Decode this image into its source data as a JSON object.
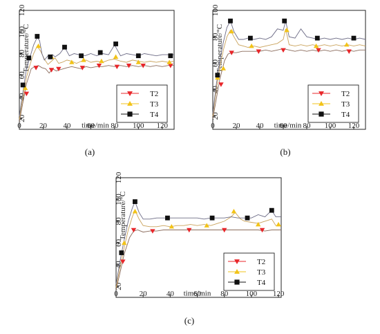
{
  "colors": {
    "T2": "#e8262a",
    "T3": "#f2c318",
    "T4": "#111111",
    "line_T2": "#8a6a5a",
    "line_T3": "#c9a25a",
    "line_T4": "#6b6a85"
  },
  "chart_data": [
    {
      "type": "line",
      "panel_label": "(a)",
      "xlabel": "time/min",
      "ylabel": "Temperature/°C",
      "xlim": [
        0,
        130
      ],
      "ylim": [
        10,
        120
      ],
      "xticks": [
        0,
        20,
        40,
        60,
        80,
        100,
        120
      ],
      "yticks": [
        20,
        40,
        60,
        80,
        100,
        120
      ],
      "legend": "bottom-right",
      "series": [
        {
          "name": "T2",
          "marker": "triangle-down",
          "x": [
            0,
            3,
            6,
            10,
            13,
            16,
            19,
            22,
            25,
            28,
            31,
            34,
            37,
            40,
            44,
            48,
            52,
            56,
            60,
            65,
            70,
            75,
            80,
            85,
            90,
            95,
            100,
            105,
            110,
            115,
            120,
            125,
            130
          ],
          "y": [
            17,
            35,
            52,
            66,
            68,
            69,
            67,
            66,
            62,
            66,
            64,
            65,
            66,
            67,
            68,
            67,
            66,
            68,
            67,
            68,
            68,
            69,
            68,
            69,
            68,
            69,
            68,
            69,
            68,
            69,
            68,
            69,
            69
          ],
          "markers_x": [
            6,
            14,
            27,
            33,
            53,
            67,
            82,
            92,
            104,
            127
          ],
          "markers_y": [
            43,
            67,
            65,
            66,
            67,
            69,
            68,
            69,
            69,
            69
          ]
        },
        {
          "name": "T3",
          "marker": "triangle-up",
          "x": [
            0,
            3,
            6,
            9,
            12,
            15,
            18,
            21,
            24,
            27,
            30,
            33,
            36,
            40,
            44,
            48,
            52,
            56,
            60,
            65,
            70,
            75,
            80,
            85,
            90,
            95,
            100,
            105,
            110,
            115,
            120,
            125,
            130
          ],
          "y": [
            19,
            40,
            58,
            70,
            80,
            87,
            82,
            75,
            70,
            73,
            76,
            71,
            72,
            74,
            73,
            71,
            73,
            74,
            72,
            73,
            72,
            74,
            75,
            73,
            72,
            74,
            73,
            72,
            73,
            72,
            73,
            72,
            73
          ],
          "markers_x": [
            5,
            16,
            27,
            44,
            54,
            69,
            81,
            100,
            126
          ],
          "markers_y": [
            48,
            87,
            77,
            72,
            74,
            73,
            77,
            72,
            72
          ]
        },
        {
          "name": "T4",
          "marker": "square",
          "x": [
            0,
            3,
            6,
            9,
            12,
            15,
            17,
            19,
            21,
            24,
            26,
            28,
            30,
            34,
            38,
            42,
            46,
            50,
            55,
            60,
            65,
            70,
            75,
            80,
            85,
            90,
            95,
            100,
            105,
            110,
            115,
            120,
            125,
            130
          ],
          "y": [
            22,
            45,
            66,
            77,
            88,
            95,
            92,
            80,
            74,
            78,
            75,
            79,
            77,
            80,
            86,
            78,
            80,
            79,
            78,
            80,
            78,
            80,
            79,
            88,
            78,
            80,
            79,
            78,
            80,
            79,
            78,
            79,
            79,
            79
          ],
          "markers_x": [
            3,
            8,
            15,
            26,
            38,
            52,
            68,
            81,
            100,
            127
          ],
          "markers_y": [
            51,
            76,
            96,
            77,
            86,
            78,
            81,
            89,
            78,
            78
          ]
        }
      ],
      "legend_entries": [
        "T2",
        "T3",
        "T4"
      ]
    },
    {
      "type": "line",
      "panel_label": "(b)",
      "xlabel": "time/min",
      "ylabel": "Temperature/°C",
      "xlim": [
        0,
        130
      ],
      "ylim": [
        10,
        100
      ],
      "xticks": [
        0,
        20,
        40,
        60,
        80,
        100,
        120
      ],
      "yticks": [
        20,
        40,
        60,
        80,
        100
      ],
      "legend": "bottom-right",
      "series": [
        {
          "name": "T2",
          "marker": "triangle-down",
          "x": [
            0,
            3,
            6,
            10,
            13,
            16,
            20,
            25,
            30,
            35,
            40,
            45,
            50,
            55,
            60,
            65,
            70,
            75,
            80,
            85,
            90,
            95,
            100,
            105,
            110,
            115,
            120,
            125,
            130
          ],
          "y": [
            18,
            33,
            48,
            62,
            67,
            68,
            68,
            69,
            69,
            69,
            69,
            70,
            69,
            70,
            71,
            70,
            69,
            70,
            69,
            70,
            69,
            70,
            69,
            70,
            69,
            70,
            69,
            70,
            70
          ],
          "markers_x": [
            7,
            16,
            39,
            60,
            90,
            116
          ],
          "markers_y": [
            44,
            68,
            69,
            70,
            70,
            69
          ]
        },
        {
          "name": "T3",
          "marker": "triangle-up",
          "x": [
            0,
            3,
            6,
            9,
            12,
            15,
            18,
            22,
            26,
            30,
            35,
            40,
            45,
            50,
            55,
            60,
            62,
            65,
            70,
            75,
            80,
            85,
            90,
            95,
            100,
            105,
            110,
            115,
            120,
            125,
            130
          ],
          "y": [
            20,
            40,
            57,
            70,
            80,
            85,
            80,
            74,
            73,
            72,
            73,
            72,
            73,
            74,
            75,
            78,
            86,
            74,
            73,
            74,
            73,
            74,
            73,
            74,
            73,
            74,
            73,
            74,
            73,
            74,
            73
          ],
          "markers_x": [
            4,
            9,
            16,
            33,
            63,
            88,
            114
          ],
          "markers_y": [
            49,
            56,
            84,
            73,
            85,
            73,
            74
          ]
        },
        {
          "name": "T4",
          "marker": "square",
          "x": [
            0,
            3,
            6,
            9,
            12,
            15,
            18,
            22,
            26,
            30,
            35,
            40,
            45,
            50,
            55,
            60,
            62,
            65,
            70,
            75,
            80,
            85,
            90,
            95,
            100,
            105,
            110,
            115,
            120,
            125,
            130
          ],
          "y": [
            22,
            44,
            62,
            76,
            87,
            92,
            84,
            78,
            78,
            79,
            78,
            79,
            78,
            80,
            86,
            85,
            92,
            80,
            79,
            86,
            80,
            79,
            78,
            79,
            78,
            79,
            78,
            79,
            78,
            79,
            78
          ],
          "markers_x": [
            4,
            15,
            32,
            61,
            89,
            120
          ],
          "markers_y": [
            51,
            92,
            79,
            92,
            79,
            79
          ]
        }
      ],
      "legend_entries": [
        "T2",
        "T3",
        "T4"
      ]
    },
    {
      "type": "line",
      "panel_label": "(c)",
      "xlabel": "time/min",
      "ylabel": "Temperature/°C",
      "xlim": [
        0,
        122
      ],
      "ylim": [
        10,
        120
      ],
      "xticks": [
        0,
        20,
        40,
        60,
        80,
        100,
        120
      ],
      "yticks": [
        20,
        40,
        60,
        80,
        100,
        120
      ],
      "legend": "bottom-right",
      "series": [
        {
          "name": "T2",
          "marker": "triangle-down",
          "x": [
            0,
            3,
            6,
            10,
            13,
            16,
            20,
            25,
            30,
            35,
            40,
            45,
            50,
            55,
            60,
            65,
            70,
            75,
            80,
            85,
            90,
            95,
            100,
            105,
            110,
            115,
            120,
            122
          ],
          "y": [
            17,
            33,
            50,
            65,
            71,
            72,
            70,
            71,
            71,
            72,
            72,
            72,
            72,
            72,
            72,
            72,
            72,
            72,
            72,
            72,
            72,
            72,
            72,
            72,
            71,
            72,
            72,
            72
          ],
          "markers_x": [
            5,
            13,
            27,
            54,
            80,
            108
          ],
          "markers_y": [
            43,
            72,
            71,
            72,
            72,
            72
          ]
        },
        {
          "name": "T3",
          "marker": "triangle-up",
          "x": [
            0,
            3,
            6,
            9,
            12,
            14,
            17,
            20,
            25,
            30,
            35,
            40,
            45,
            50,
            55,
            60,
            65,
            70,
            75,
            80,
            85,
            88,
            92,
            95,
            100,
            105,
            110,
            115,
            118,
            122
          ],
          "y": [
            19,
            38,
            56,
            72,
            84,
            90,
            82,
            76,
            75,
            75,
            76,
            75,
            76,
            76,
            77,
            76,
            77,
            76,
            78,
            80,
            84,
            88,
            82,
            80,
            79,
            78,
            80,
            82,
            76,
            76
          ],
          "markers_x": [
            6,
            14,
            41,
            67,
            87,
            105,
            120
          ],
          "markers_y": [
            60,
            89,
            75,
            76,
            89,
            77,
            77
          ]
        },
        {
          "name": "T4",
          "marker": "square",
          "x": [
            0,
            3,
            6,
            9,
            12,
            14,
            17,
            20,
            25,
            30,
            35,
            40,
            45,
            50,
            55,
            60,
            65,
            70,
            75,
            80,
            85,
            90,
            95,
            100,
            105,
            110,
            115,
            118,
            122
          ],
          "y": [
            22,
            44,
            63,
            80,
            92,
            98,
            88,
            82,
            82,
            83,
            83,
            83,
            83,
            83,
            83,
            83,
            82,
            83,
            83,
            83,
            84,
            83,
            83,
            83,
            86,
            84,
            90,
            84,
            84
          ],
          "markers_x": [
            4,
            14,
            38,
            71,
            97,
            115
          ],
          "markers_y": [
            51,
            98,
            83,
            83,
            83,
            90
          ]
        }
      ],
      "legend_entries": [
        "T2",
        "T3",
        "T4"
      ]
    }
  ]
}
